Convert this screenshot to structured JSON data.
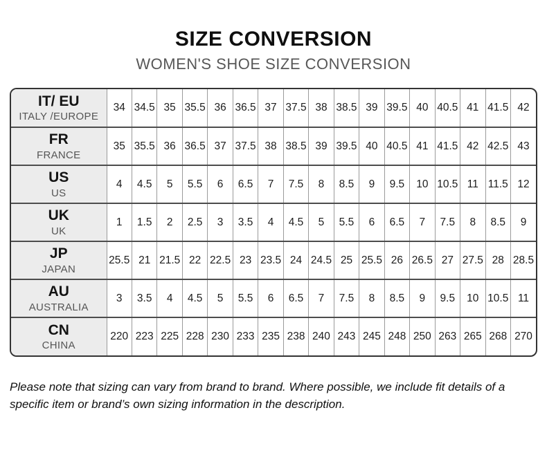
{
  "header": {
    "title": "SIZE CONVERSION",
    "subtitle": "WOMEN'S SHOE SIZE CONVERSION"
  },
  "table": {
    "rows": [
      {
        "code": "IT/ EU",
        "region": "ITALY /EUROPE",
        "sizes": [
          "34",
          "34.5",
          "35",
          "35.5",
          "36",
          "36.5",
          "37",
          "37.5",
          "38",
          "38.5",
          "39",
          "39.5",
          "40",
          "40.5",
          "41",
          "41.5",
          "42"
        ]
      },
      {
        "code": "FR",
        "region": "FRANCE",
        "sizes": [
          "35",
          "35.5",
          "36",
          "36.5",
          "37",
          "37.5",
          "38",
          "38.5",
          "39",
          "39.5",
          "40",
          "40.5",
          "41",
          "41.5",
          "42",
          "42.5",
          "43"
        ]
      },
      {
        "code": "US",
        "region": "US",
        "sizes": [
          "4",
          "4.5",
          "5",
          "5.5",
          "6",
          "6.5",
          "7",
          "7.5",
          "8",
          "8.5",
          "9",
          "9.5",
          "10",
          "10.5",
          "11",
          "11.5",
          "12"
        ]
      },
      {
        "code": "UK",
        "region": "UK",
        "sizes": [
          "1",
          "1.5",
          "2",
          "2.5",
          "3",
          "3.5",
          "4",
          "4.5",
          "5",
          "5.5",
          "6",
          "6.5",
          "7",
          "7.5",
          "8",
          "8.5",
          "9"
        ]
      },
      {
        "code": "JP",
        "region": "JAPAN",
        "sizes": [
          "25.5",
          "21",
          "21.5",
          "22",
          "22.5",
          "23",
          "23.5",
          "24",
          "24.5",
          "25",
          "25.5",
          "26",
          "26.5",
          "27",
          "27.5",
          "28",
          "28.5"
        ]
      },
      {
        "code": "AU",
        "region": "AUSTRALIA",
        "sizes": [
          "3",
          "3.5",
          "4",
          "4.5",
          "5",
          "5.5",
          "6",
          "6.5",
          "7",
          "7.5",
          "8",
          "8.5",
          "9",
          "9.5",
          "10",
          "10.5",
          "11"
        ]
      },
      {
        "code": "CN",
        "region": "CHINA",
        "sizes": [
          "220",
          "223",
          "225",
          "228",
          "230",
          "233",
          "235",
          "238",
          "240",
          "243",
          "245",
          "248",
          "250",
          "263",
          "265",
          "268",
          "270"
        ]
      }
    ]
  },
  "footer": {
    "note": "Please note that sizing can vary from brand to brand. Where possible, we include fit details of a specific item or brand’s own sizing information in the description."
  },
  "colors": {
    "title_text": "#0f0f0f",
    "subtitle_text": "#575757",
    "header_column_bg": "#ececec",
    "column_grid_line": "#9a9a9a",
    "row_grid_line": "#4c4c4c",
    "outer_border": "#333333"
  }
}
